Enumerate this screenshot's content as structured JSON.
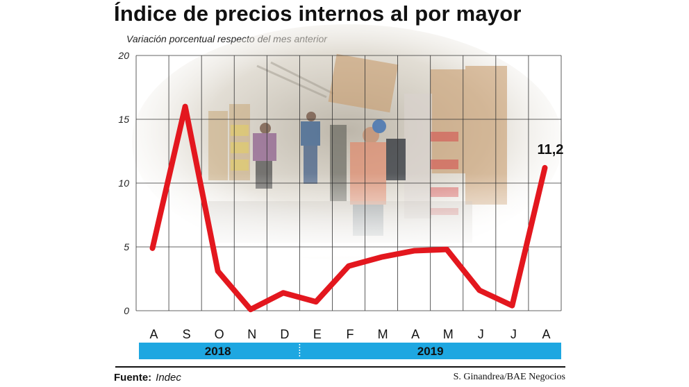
{
  "title": "Índice de precios internos al por mayor",
  "subtitle": "Variación porcentual respecto del mes anterior",
  "footer": {
    "source_label": "Fuente:",
    "source_value": "Indec",
    "credit": "S. Ginandrea/BAE Negocios"
  },
  "colors": {
    "line": "#e3171e",
    "year_band": "#1ea7e1",
    "grid": "#333333"
  },
  "chart_data": {
    "type": "line",
    "categories": [
      "A",
      "S",
      "O",
      "N",
      "D",
      "E",
      "F",
      "M",
      "A",
      "M",
      "J",
      "J",
      "A"
    ],
    "series": [
      {
        "values": [
          4.9,
          16.0,
          3.1,
          0.1,
          1.4,
          0.7,
          3.5,
          4.2,
          4.7,
          4.8,
          1.6,
          0.4,
          11.2
        ]
      }
    ],
    "ylim": [
      0,
      20
    ],
    "yticks": [
      0,
      5,
      10,
      15,
      20
    ],
    "ytick_labels": [
      "0",
      "5",
      "10",
      "15",
      "20"
    ],
    "annotation": {
      "index": 12,
      "text": "11,2"
    },
    "year_groups": [
      {
        "label": "2018",
        "start": 0,
        "end": 4
      },
      {
        "label": "2019",
        "start": 5,
        "end": 12
      }
    ],
    "grid": true,
    "background_photo": "wholesale market workers carrying crates"
  }
}
